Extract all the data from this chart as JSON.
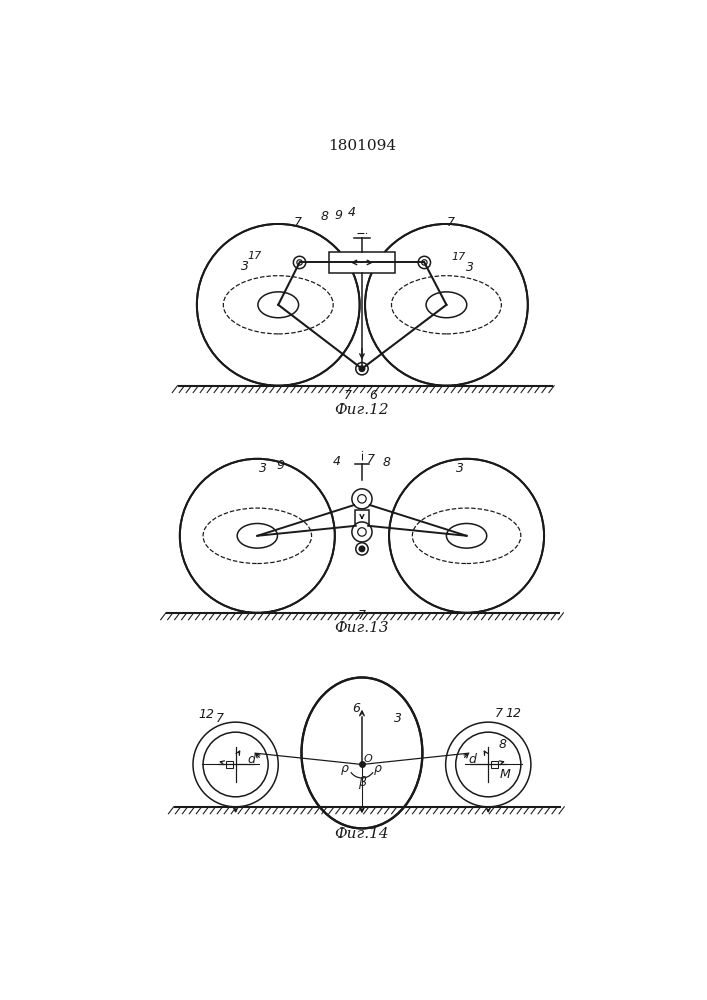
{
  "title": "1801094",
  "fig12_caption": "Фиг.12",
  "fig13_caption": "Фиг.13",
  "fig14_caption": "Фиг.14",
  "bg_color": "#ffffff",
  "line_color": "#1a1a1a",
  "line_width": 1.1
}
